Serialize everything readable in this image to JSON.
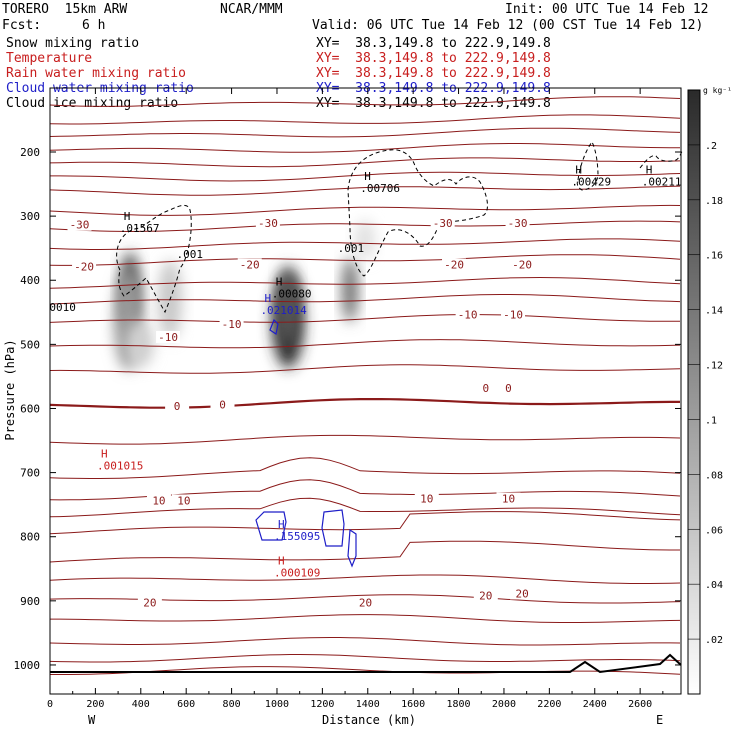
{
  "header": {
    "model": "TORERO  15km ARW",
    "org": "NCAR/MMM",
    "init": "Init: 00 UTC Tue 14 Feb 12",
    "fcst_label": "Fcst:",
    "fcst_value": "6 h",
    "valid": "Valid: 06 UTC Tue 14 Feb 12 (00 CST Tue 14 Feb 12)"
  },
  "fields": [
    {
      "name": "Snow mixing ratio",
      "xy": "XY=  38.3,149.8 to 222.9,149.8",
      "color": "#000000"
    },
    {
      "name": "Temperature",
      "xy": "XY=  38.3,149.8 to 222.9,149.8",
      "color": "#c81e1e"
    },
    {
      "name": "Rain water mixing ratio",
      "xy": "XY=  38.3,149.8 to 222.9,149.8",
      "color": "#c81e1e"
    },
    {
      "name": "Cloud water mixing ratio",
      "xy": "XY=  38.3,149.8 to 222.9,149.8",
      "color": "#1e1ec8"
    },
    {
      "name": "Cloud ice mixing ratio",
      "xy": "XY=  38.3,149.8 to 222.9,149.8",
      "color": "#000000"
    }
  ],
  "chart_data": {
    "type": "cross-section",
    "xlabel": "Distance (km)",
    "ylabel": "Pressure (hPa)",
    "xlim": [
      0,
      2780
    ],
    "x_ticks": [
      0,
      200,
      400,
      600,
      800,
      1000,
      1200,
      1400,
      1600,
      1800,
      2000,
      2200,
      2400,
      2600
    ],
    "y_ticks": [
      200,
      300,
      400,
      500,
      600,
      700,
      800,
      900,
      1000
    ],
    "y_scale": "log-pressure",
    "ylim": [
      1050,
      130
    ],
    "x_end_labels": {
      "left": "W",
      "right": "E"
    },
    "colorbar": {
      "unit": "g kg⁻¹",
      "ticks": [
        ".02",
        ".04",
        ".06",
        ".08",
        ".1",
        ".12",
        ".14",
        ".16",
        ".18",
        ".2"
      ],
      "values": [
        0.02,
        0.04,
        0.06,
        0.08,
        0.1,
        0.12,
        0.14,
        0.16,
        0.18,
        0.2
      ],
      "range": [
        0,
        0.22
      ]
    },
    "temperature_color": "#8b1a1a",
    "temperature_labels": [
      {
        "text": "-30",
        "x": 130,
        "p": 315
      },
      {
        "text": "-30",
        "x": 960,
        "p": 312
      },
      {
        "text": "-30",
        "x": 1730,
        "p": 312
      },
      {
        "text": "-30",
        "x": 2060,
        "p": 312
      },
      {
        "text": "-20",
        "x": 150,
        "p": 380
      },
      {
        "text": "-20",
        "x": 880,
        "p": 377
      },
      {
        "text": "-20",
        "x": 1780,
        "p": 377
      },
      {
        "text": "-20",
        "x": 2080,
        "p": 377
      },
      {
        "text": "-10",
        "x": 520,
        "p": 490
      },
      {
        "text": "-10",
        "x": 800,
        "p": 470
      },
      {
        "text": "-10",
        "x": 1840,
        "p": 455
      },
      {
        "text": "-10",
        "x": 2040,
        "p": 455
      },
      {
        "text": "0",
        "x": 560,
        "p": 598
      },
      {
        "text": "0",
        "x": 760,
        "p": 595
      },
      {
        "text": "0",
        "x": 1920,
        "p": 570
      },
      {
        "text": "0",
        "x": 2020,
        "p": 570
      },
      {
        "text": "10",
        "x": 480,
        "p": 745
      },
      {
        "text": "10",
        "x": 590,
        "p": 745
      },
      {
        "text": "10",
        "x": 1660,
        "p": 742
      },
      {
        "text": "10",
        "x": 2020,
        "p": 742
      },
      {
        "text": "20",
        "x": 440,
        "p": 904
      },
      {
        "text": "20",
        "x": 1390,
        "p": 904
      },
      {
        "text": "20",
        "x": 1920,
        "p": 893
      },
      {
        "text": "20",
        "x": 2080,
        "p": 890
      }
    ],
    "extrema_labels": [
      {
        "h": "H",
        "text": ".01567",
        "x": 360,
        "p": 325,
        "color": "#000000"
      },
      {
        "h": "",
        "text": ".001",
        "x": 610,
        "p": 365,
        "color": "#000000"
      },
      {
        "h": "",
        "text": "0010",
        "x": 50,
        "p": 448,
        "color": "#000000"
      },
      {
        "h": "H",
        "text": ".00080",
        "x": 1030,
        "p": 427,
        "color": "#000000"
      },
      {
        "h": "H",
        "text": ".021014",
        "x": 980,
        "p": 453,
        "color": "#1e1ec8"
      },
      {
        "h": "",
        "text": ".001",
        "x": 1320,
        "p": 356,
        "color": "#000000"
      },
      {
        "h": "H",
        "text": ".00706",
        "x": 1420,
        "p": 262,
        "color": "#000000"
      },
      {
        "h": "H",
        "text": ".00429",
        "x": 2350,
        "p": 252,
        "color": "#000000"
      },
      {
        "h": "H",
        "text": ".00211",
        "x": 2660,
        "p": 252,
        "color": "#000000"
      },
      {
        "h": "H",
        "text": ".001015",
        "x": 260,
        "p": 695,
        "color": "#c81e1e"
      },
      {
        "h": "H",
        "text": ".155095",
        "x": 1040,
        "p": 805,
        "color": "#1e1ec8"
      },
      {
        "h": "H",
        "text": ".000109",
        "x": 1040,
        "p": 862,
        "color": "#c81e1e"
      }
    ]
  }
}
